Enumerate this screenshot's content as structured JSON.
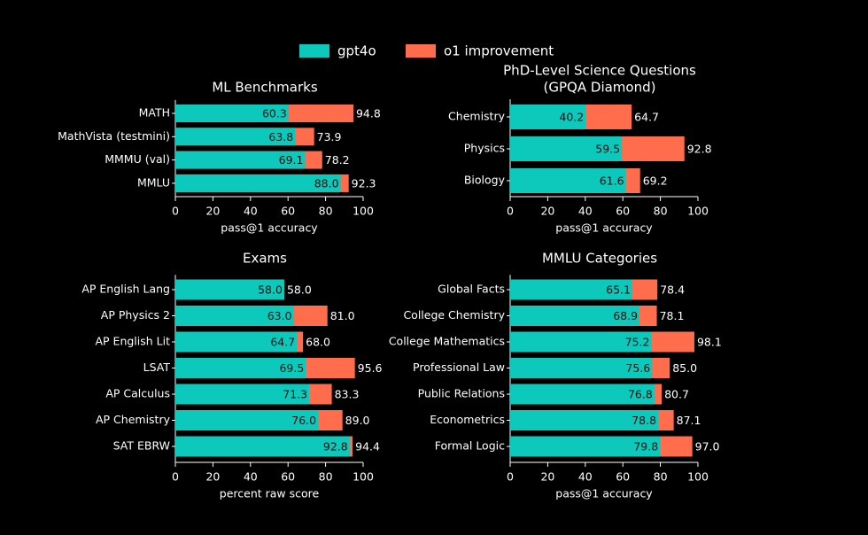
{
  "chart_data": [
    {
      "type": "bar",
      "title": [
        "ML Benchmarks"
      ],
      "xlabel": "pass@1 accuracy",
      "categories": [
        "MATH",
        "MathVista (testmini)",
        "MMMU (val)",
        "MMLU"
      ],
      "series": [
        {
          "name": "gpt4o",
          "color": "#0cc9bb",
          "values": [
            60.3,
            63.8,
            69.1,
            88.0
          ],
          "value_labels": [
            "60.3",
            "63.8",
            "69.1",
            "88.0"
          ]
        },
        {
          "name": "o1 improvement",
          "color": "#ff6d4d",
          "values": [
            94.8,
            73.9,
            78.2,
            92.3
          ],
          "value_labels": [
            "94.8",
            "73.9",
            "78.2",
            "92.3"
          ]
        }
      ],
      "xlim": [
        0,
        100
      ],
      "xticks": [
        0,
        20,
        40,
        60,
        80,
        100
      ]
    },
    {
      "type": "bar",
      "title": [
        "PhD-Level Science Questions",
        "(GPQA Diamond)"
      ],
      "xlabel": "pass@1 accuracy",
      "categories": [
        "Chemistry",
        "Physics",
        "Biology"
      ],
      "series": [
        {
          "name": "gpt4o",
          "color": "#0cc9bb",
          "values": [
            40.2,
            59.5,
            61.6
          ],
          "value_labels": [
            "40.2",
            "59.5",
            "61.6"
          ]
        },
        {
          "name": "o1 improvement",
          "color": "#ff6d4d",
          "values": [
            64.7,
            92.8,
            69.2
          ],
          "value_labels": [
            "64.7",
            "92.8",
            "69.2"
          ]
        }
      ],
      "xlim": [
        0,
        100
      ],
      "xticks": [
        0,
        20,
        40,
        60,
        80,
        100
      ]
    },
    {
      "type": "bar",
      "title": [
        "Exams"
      ],
      "xlabel": "percent raw score",
      "categories": [
        "AP English Lang",
        "AP Physics 2",
        "AP English Lit",
        "LSAT",
        "AP Calculus",
        "AP Chemistry",
        "SAT EBRW"
      ],
      "series": [
        {
          "name": "gpt4o",
          "color": "#0cc9bb",
          "values": [
            58.0,
            63.0,
            64.7,
            69.5,
            71.3,
            76.0,
            92.8
          ],
          "value_labels": [
            "58.0",
            "63.0",
            "64.7",
            "69.5",
            "71.3",
            "76.0",
            "92.8"
          ]
        },
        {
          "name": "o1 improvement",
          "color": "#ff6d4d",
          "values": [
            58.0,
            81.0,
            68.0,
            95.6,
            83.3,
            89.0,
            94.4
          ],
          "value_labels": [
            "58.0",
            "81.0",
            "68.0",
            "95.6",
            "83.3",
            "89.0",
            "94.4"
          ]
        }
      ],
      "xlim": [
        0,
        100
      ],
      "xticks": [
        0,
        20,
        40,
        60,
        80,
        100
      ]
    },
    {
      "type": "bar",
      "title": [
        "MMLU Categories"
      ],
      "xlabel": "pass@1 accuracy",
      "categories": [
        "Global Facts",
        "College Chemistry",
        "College Mathematics",
        "Professional Law",
        "Public Relations",
        "Econometrics",
        "Formal Logic"
      ],
      "series": [
        {
          "name": "gpt4o",
          "color": "#0cc9bb",
          "values": [
            65.1,
            68.9,
            75.2,
            75.6,
            76.8,
            78.8,
            79.8
          ],
          "value_labels": [
            "65.1",
            "68.9",
            "75.2",
            "75.6",
            "76.8",
            "78.8",
            "79.8"
          ]
        },
        {
          "name": "o1 improvement",
          "color": "#ff6d4d",
          "values": [
            78.4,
            78.1,
            98.1,
            85.0,
            80.7,
            87.1,
            97.0
          ],
          "value_labels": [
            "78.4",
            "78.1",
            "98.1",
            "85.0",
            "80.7",
            "87.1",
            "97.0"
          ]
        }
      ],
      "xlim": [
        0,
        100
      ],
      "xticks": [
        0,
        20,
        40,
        60,
        80,
        100
      ]
    }
  ]
}
